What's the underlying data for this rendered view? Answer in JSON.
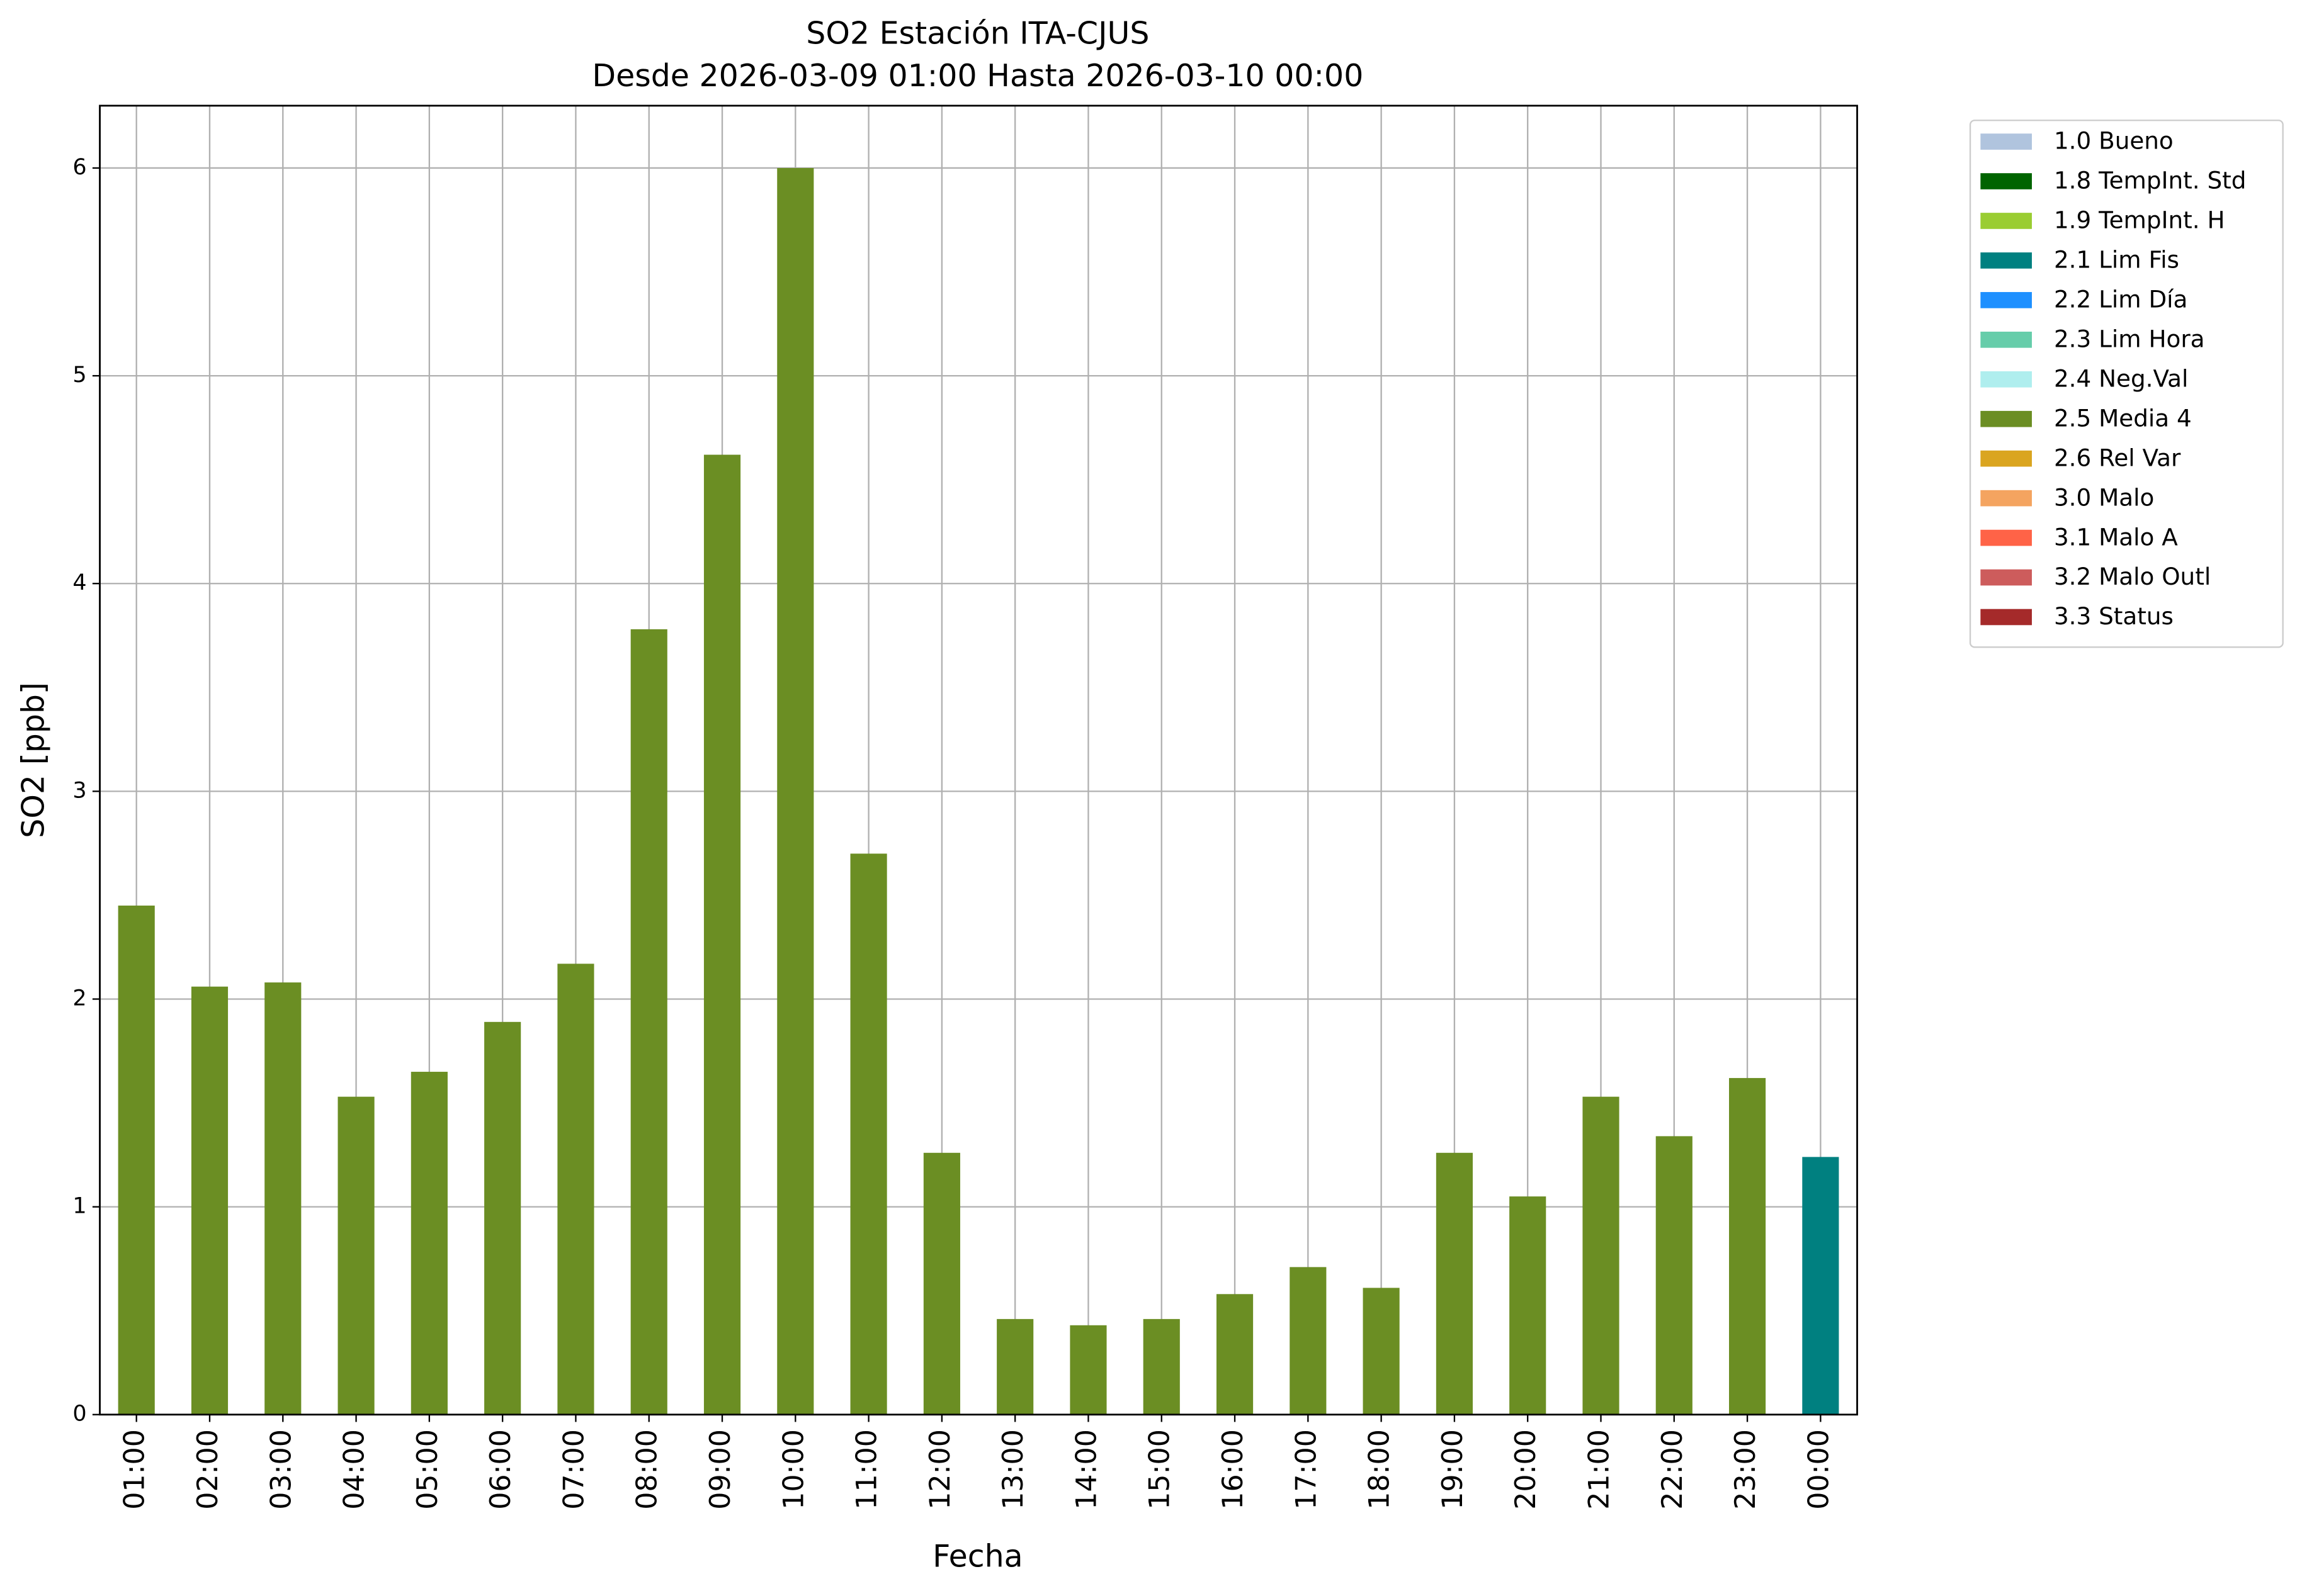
{
  "chart_data": {
    "type": "bar",
    "title": "SO2 Estación ITA-CJUS",
    "subtitle": "Desde 2026-03-09 01:00 Hasta 2026-03-10 00:00",
    "x_label": "Fecha",
    "y_label": "SO2 [ppb]",
    "categories": [
      "01:00",
      "02:00",
      "03:00",
      "04:00",
      "05:00",
      "06:00",
      "07:00",
      "08:00",
      "09:00",
      "10:00",
      "11:00",
      "12:00",
      "13:00",
      "14:00",
      "15:00",
      "16:00",
      "17:00",
      "18:00",
      "19:00",
      "20:00",
      "21:00",
      "22:00",
      "23:00",
      "00:00"
    ],
    "values": [
      2.45,
      2.06,
      2.08,
      1.53,
      1.65,
      1.89,
      2.17,
      3.78,
      4.62,
      6.0,
      2.7,
      1.26,
      0.46,
      0.43,
      0.46,
      0.58,
      0.71,
      0.61,
      1.26,
      1.05,
      1.53,
      1.34,
      1.62,
      1.24
    ],
    "colors": [
      "#6b8e23",
      "#6b8e23",
      "#6b8e23",
      "#6b8e23",
      "#6b8e23",
      "#6b8e23",
      "#6b8e23",
      "#6b8e23",
      "#6b8e23",
      "#6b8e23",
      "#6b8e23",
      "#6b8e23",
      "#6b8e23",
      "#6b8e23",
      "#6b8e23",
      "#6b8e23",
      "#6b8e23",
      "#6b8e23",
      "#6b8e23",
      "#6b8e23",
      "#6b8e23",
      "#6b8e23",
      "#6b8e23",
      "#008080"
    ],
    "legend": [
      {
        "name": "1.0 Bueno",
        "color": "#b0c4de"
      },
      {
        "name": "1.8 TempInt. Std",
        "color": "#006400"
      },
      {
        "name": "1.9 TempInt. H",
        "color": "#9acd32"
      },
      {
        "name": "2.1 Lim Fis",
        "color": "#008080"
      },
      {
        "name": "2.2 Lim Día",
        "color": "#1e90ff"
      },
      {
        "name": "2.3 Lim Hora",
        "color": "#66cdaa"
      },
      {
        "name": "2.4 Neg.Val",
        "color": "#afeeee"
      },
      {
        "name": "2.5 Media 4",
        "color": "#6b8e23"
      },
      {
        "name": "2.6 Rel Var",
        "color": "#daa520"
      },
      {
        "name": "3.0 Malo",
        "color": "#f4a460"
      },
      {
        "name": "3.1 Malo A",
        "color": "#ff6347"
      },
      {
        "name": "3.2 Malo Outl",
        "color": "#cd5c5c"
      },
      {
        "name": "3.3 Status",
        "color": "#a52a2a"
      }
    ],
    "legend_position": "outside-upper-right",
    "ylim": [
      0,
      6.3
    ],
    "yticks": [
      0,
      1,
      2,
      3,
      4,
      5,
      6
    ],
    "grid": true
  }
}
